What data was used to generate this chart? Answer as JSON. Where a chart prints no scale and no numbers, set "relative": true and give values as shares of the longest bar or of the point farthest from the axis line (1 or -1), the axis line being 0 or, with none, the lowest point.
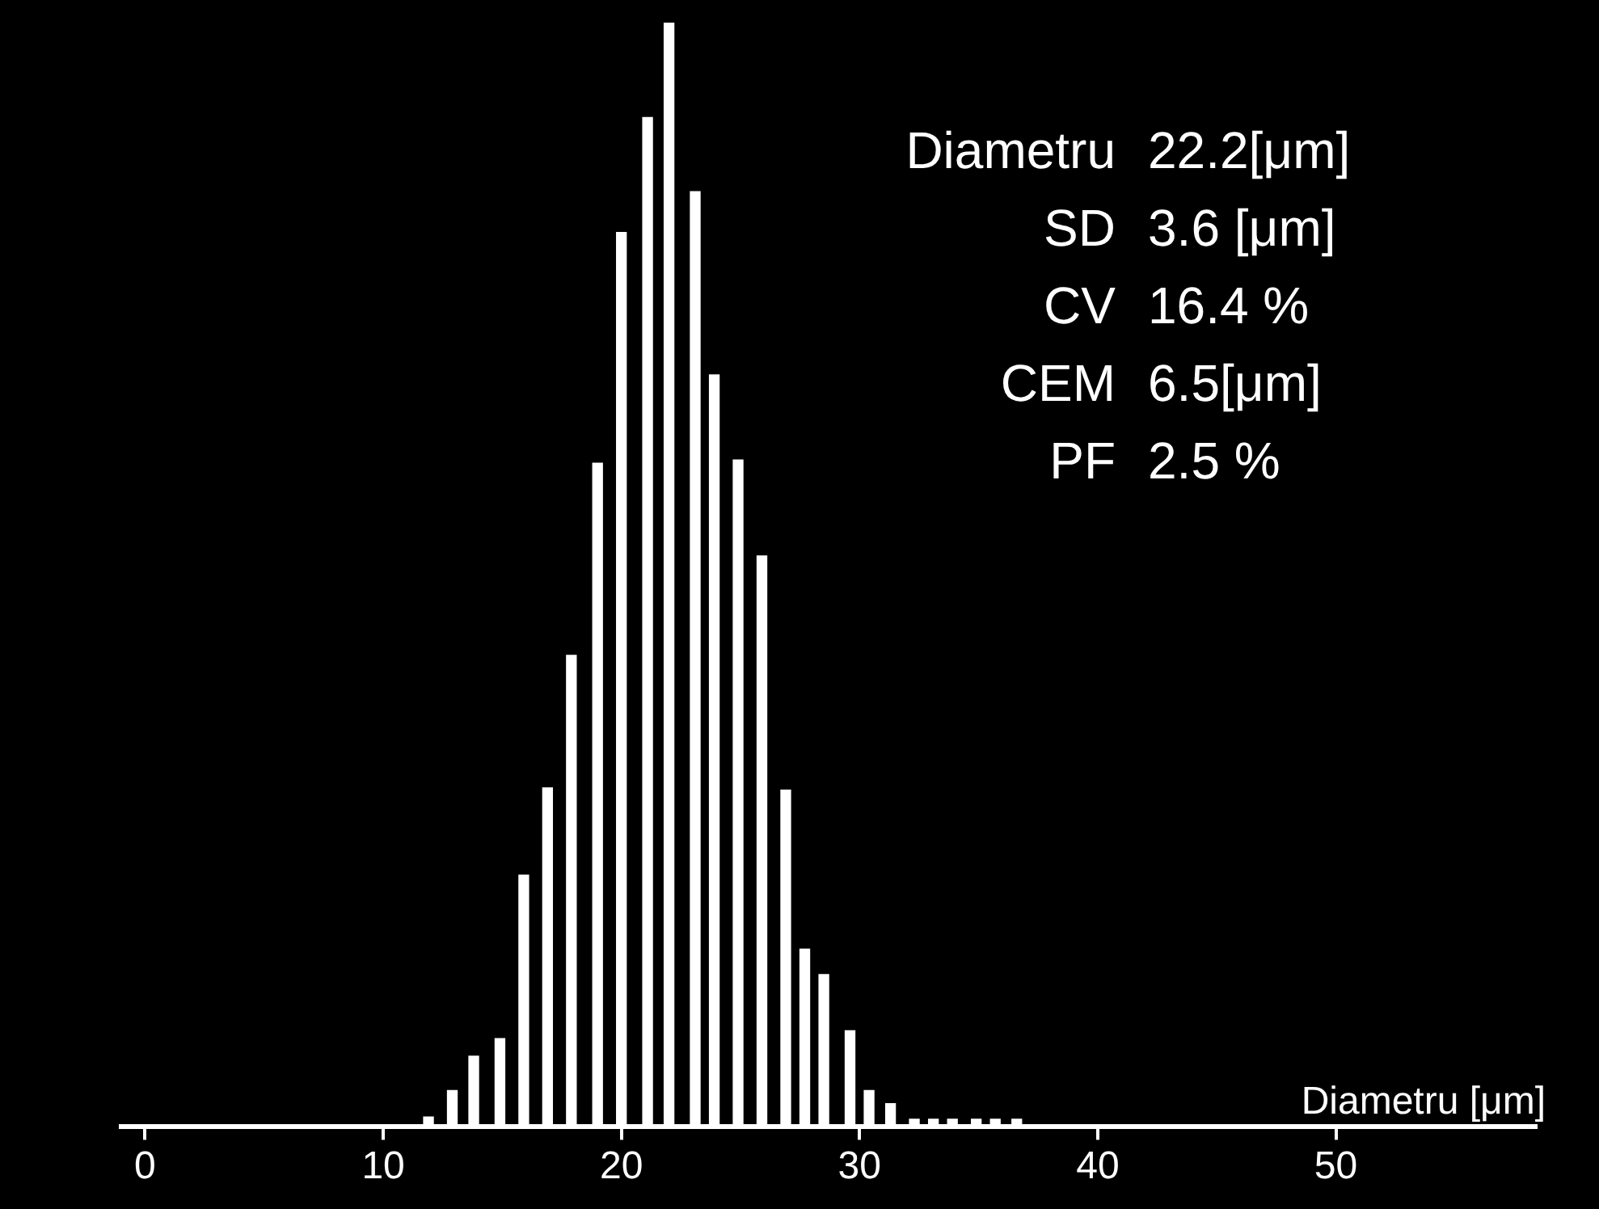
{
  "chart_data": {
    "type": "bar",
    "relative": true,
    "x": [
      11.9,
      12.9,
      13.8,
      14.9,
      15.9,
      16.9,
      17.9,
      19.0,
      20.0,
      21.1,
      22.0,
      23.1,
      23.9,
      24.9,
      25.9,
      26.9,
      27.7,
      28.5,
      29.6,
      30.4,
      31.3,
      32.3,
      33.1,
      33.9,
      34.9,
      35.7,
      36.6
    ],
    "values": [
      0.009,
      0.033,
      0.064,
      0.08,
      0.228,
      0.307,
      0.427,
      0.601,
      0.81,
      0.914,
      1,
      0.847,
      0.681,
      0.604,
      0.517,
      0.305,
      0.161,
      0.138,
      0.087,
      0.033,
      0.021,
      0.007,
      0.007,
      0.007,
      0.007,
      0.007,
      0.007
    ],
    "color": "#ffffff",
    "xlabel": "Diametru [μm]",
    "xlim": [
      -1,
      58.4
    ],
    "xticks": [
      0,
      10,
      20,
      30,
      40,
      50
    ],
    "grid": false,
    "legend": false,
    "annotations": [
      "Diametru",
      "22.2[μm]",
      "SD",
      "3.6 [μm]",
      "CV",
      "16.4 %",
      "CEM",
      "6.5[μm]",
      "PF",
      "2.5 %"
    ]
  }
}
